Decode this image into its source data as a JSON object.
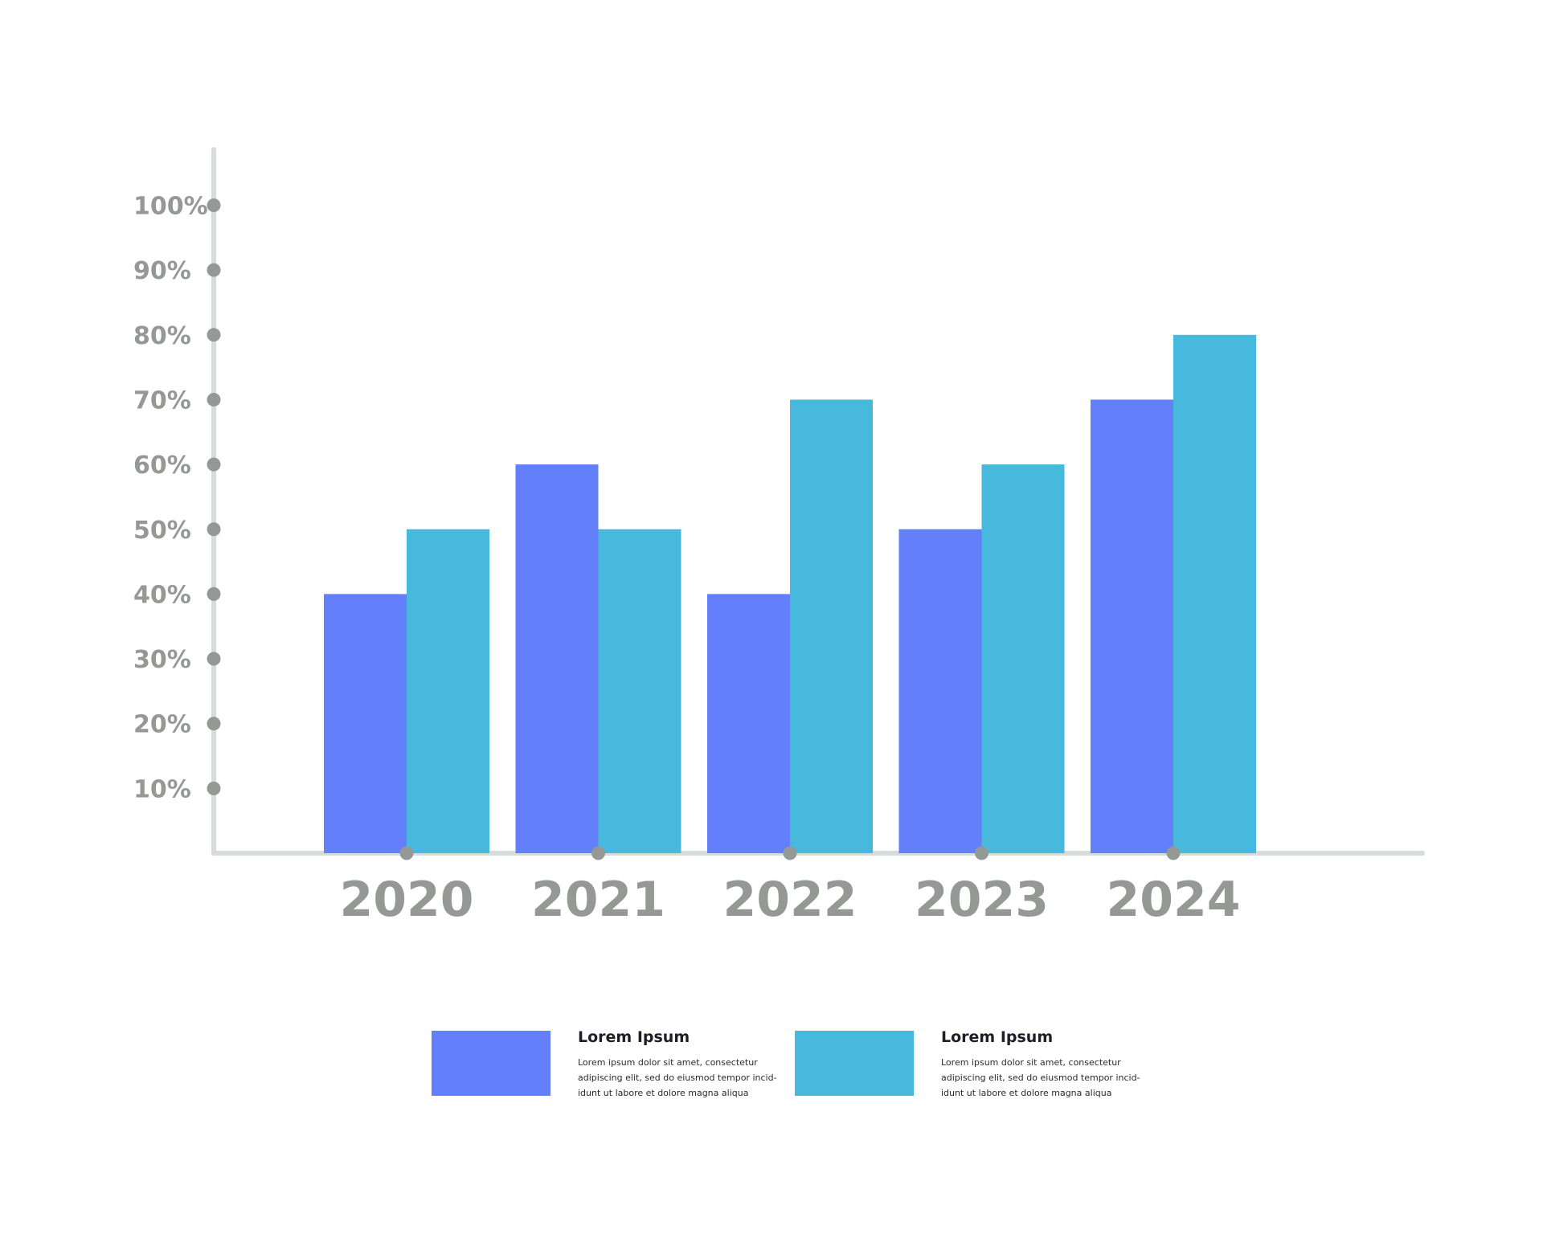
{
  "chart_data": {
    "type": "bar",
    "title": "",
    "xlabel": "",
    "ylabel": "",
    "categories": [
      "2020",
      "2021",
      "2022",
      "2023",
      "2024"
    ],
    "series": [
      {
        "name": "Lorem Ipsum",
        "values": [
          40,
          60,
          40,
          50,
          70
        ],
        "color": "#637ff9"
      },
      {
        "name": "Lorem Ipsum",
        "values": [
          50,
          50,
          70,
          60,
          80
        ],
        "color": "#47b9dc"
      }
    ],
    "yticks": [
      "10%",
      "20%",
      "30%",
      "40%",
      "50%",
      "60%",
      "70%",
      "80%",
      "90%",
      "100%"
    ],
    "ylim": [
      0,
      100
    ],
    "grid": false,
    "axis_color": "#d6dcda",
    "tick_dot_color": "#959996",
    "legend": {
      "placement": "bottom-center",
      "items": [
        {
          "title": "Lorem Ipsum",
          "desc": [
            "Lorem ipsum dolor sit amet, consectetur",
            "adipiscing elit, sed do eiusmod tempor incid-",
            "idunt ut labore et dolore magna aliqua"
          ],
          "color": "#637ff9"
        },
        {
          "title": "Lorem Ipsum",
          "desc": [
            "Lorem ipsum dolor sit amet, consectetur",
            "adipiscing elit, sed do eiusmod tempor incid-",
            "idunt ut labore et dolore magna aliqua"
          ],
          "color": "#47b9dc"
        }
      ]
    }
  }
}
